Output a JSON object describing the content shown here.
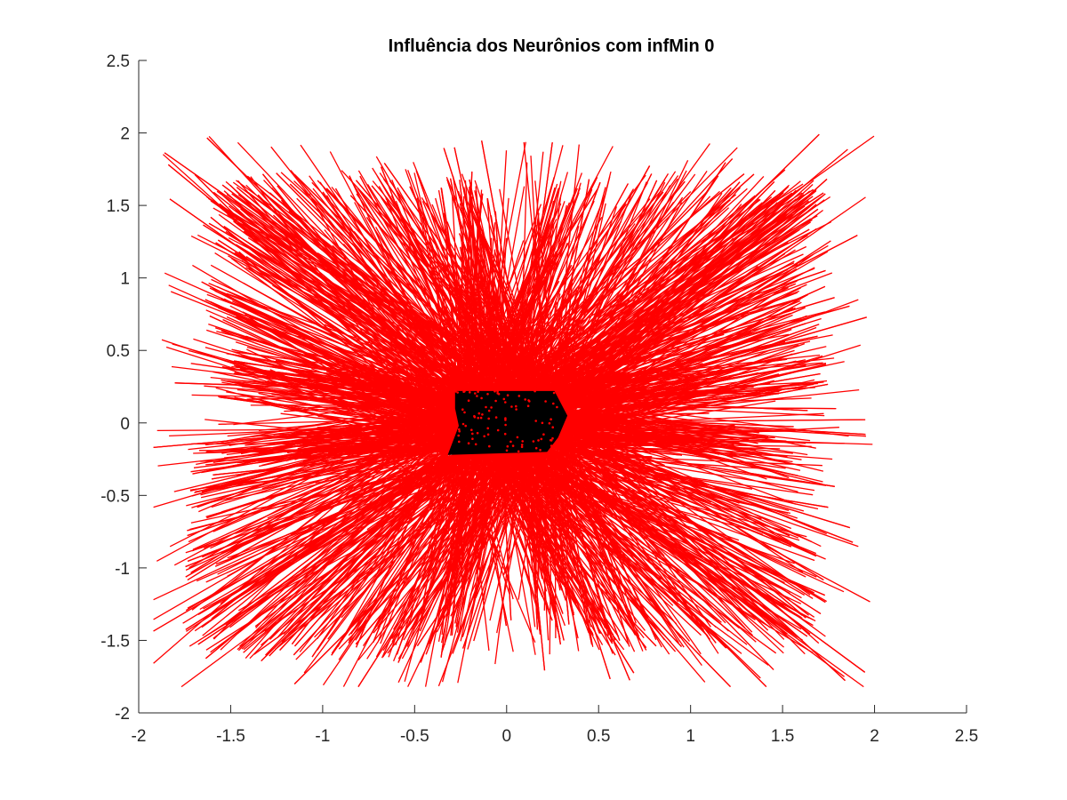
{
  "chart_data": {
    "type": "scatter",
    "title": "Influência dos Neurônios com infMin 0",
    "xlabel": "",
    "ylabel": "",
    "xlim": [
      -2,
      2.5
    ],
    "ylim": [
      -2,
      2.5
    ],
    "x_ticks": [
      "-2",
      "-1.5",
      "-1",
      "-0.5",
      "0",
      "0.5",
      "1",
      "1.5",
      "2",
      "2.5"
    ],
    "y_ticks": [
      "-2",
      "-1.5",
      "-1",
      "-0.5",
      "0",
      "0.5",
      "1",
      "1.5",
      "2",
      "2.5"
    ],
    "grid": false,
    "legend": "none",
    "colors": {
      "lines": "#ff0000",
      "points": "#000000",
      "axis": "#262626"
    },
    "series": [
      {
        "kind": "line-segments",
        "color": "#ff0000",
        "description_points": "dense red line segments radiating from a central cluster of neurons to input samples spread over roughly [-1.9, 2.0] x [-1.8, 2.2]",
        "segment_endpoints_x_range": [
          -1.92,
          2.0
        ],
        "segment_endpoints_y_range": [
          -1.82,
          2.22
        ],
        "gaps_toward": [
          {
            "from": [
              -0.3,
              0.0
            ],
            "to": [
              -1.55,
              0.08
            ]
          },
          {
            "from": [
              0.18,
              0.2
            ],
            "to": [
              0.2,
              1.12
            ]
          },
          {
            "from": [
              0.3,
              0.05
            ],
            "to": [
              1.1,
              0.65
            ]
          },
          {
            "from": [
              -0.12,
              -0.2
            ],
            "to": [
              -0.1,
              -1.15
            ]
          }
        ]
      },
      {
        "kind": "points",
        "color": "#000000",
        "cluster_polygon": [
          [
            -0.28,
            0.22
          ],
          [
            0.26,
            0.22
          ],
          [
            0.33,
            0.05
          ],
          [
            0.28,
            -0.1
          ],
          [
            0.22,
            -0.2
          ],
          [
            -0.32,
            -0.22
          ],
          [
            -0.26,
            -0.02
          ],
          [
            -0.28,
            0.1
          ]
        ]
      }
    ]
  }
}
